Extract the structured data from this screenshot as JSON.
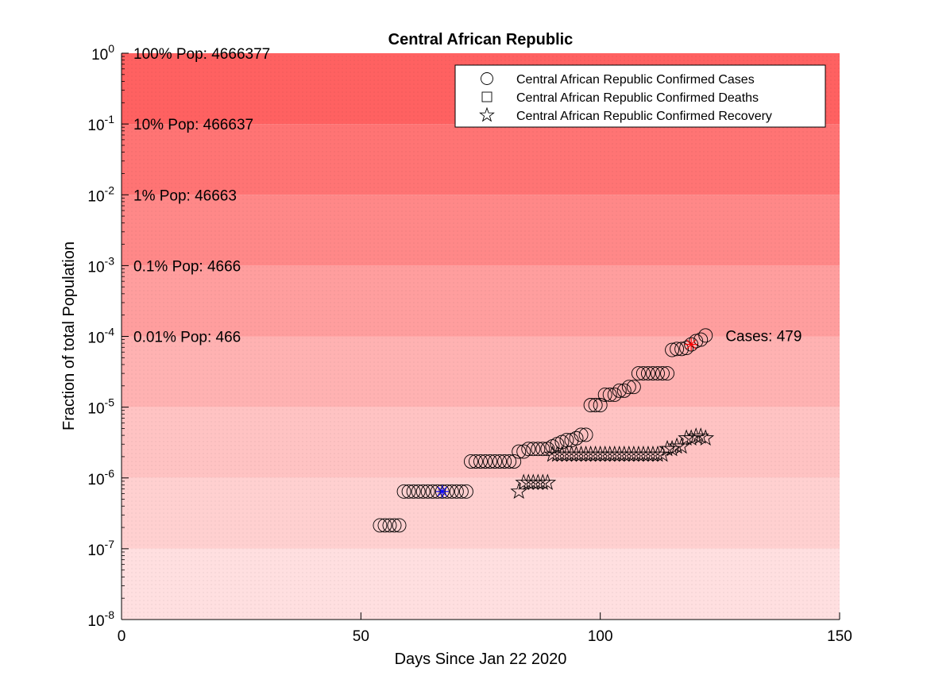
{
  "chart_data": {
    "type": "scatter",
    "title": "Central African Republic",
    "xlabel": "Days Since Jan 22 2020",
    "ylabel": "Fraction of total Population",
    "xlim": [
      0,
      150
    ],
    "ylim": [
      1e-08,
      1
    ],
    "yscale": "log",
    "x_ticks": [
      "0",
      "50",
      "100",
      "150"
    ],
    "y_ticks": [
      {
        "base": "10",
        "exp": "0"
      },
      {
        "base": "10",
        "exp": "-1"
      },
      {
        "base": "10",
        "exp": "-2"
      },
      {
        "base": "10",
        "exp": "-3"
      },
      {
        "base": "10",
        "exp": "-4"
      },
      {
        "base": "10",
        "exp": "-5"
      },
      {
        "base": "10",
        "exp": "-6"
      },
      {
        "base": "10",
        "exp": "-7"
      },
      {
        "base": "10",
        "exp": "-8"
      }
    ],
    "population_bands": [
      {
        "label": "100% Pop: 4666377",
        "upper": 1,
        "lower": 0.1,
        "color": "#ff6161"
      },
      {
        "label": "10% Pop: 466637",
        "upper": 0.1,
        "lower": 0.01,
        "color": "#ff7474"
      },
      {
        "label": "1% Pop: 46663",
        "upper": 0.01,
        "lower": 0.001,
        "color": "#ff8888"
      },
      {
        "label": "0.1% Pop: 4666",
        "upper": 0.001,
        "lower": 0.0001,
        "color": "#ff9e9e"
      },
      {
        "label": "0.01% Pop: 466",
        "upper": 0.0001,
        "lower": 1e-05,
        "color": "#ffb2b2"
      },
      {
        "label": "",
        "upper": 1e-05,
        "lower": 1e-06,
        "color": "#ffc3c3"
      },
      {
        "label": "",
        "upper": 1e-06,
        "lower": 1e-07,
        "color": "#ffd0d0"
      },
      {
        "label": "",
        "upper": 1e-07,
        "lower": 1e-08,
        "color": "#ffdfe0"
      }
    ],
    "series": [
      {
        "name": "Central African Republic Confirmed Cases",
        "marker": "circle",
        "points": [
          [
            54,
            2.14e-07
          ],
          [
            55,
            2.14e-07
          ],
          [
            56,
            2.14e-07
          ],
          [
            57,
            2.14e-07
          ],
          [
            58,
            2.14e-07
          ],
          [
            59,
            6.43e-07
          ],
          [
            60,
            6.43e-07
          ],
          [
            61,
            6.43e-07
          ],
          [
            62,
            6.43e-07
          ],
          [
            63,
            6.43e-07
          ],
          [
            64,
            6.43e-07
          ],
          [
            65,
            6.43e-07
          ],
          [
            66,
            6.43e-07
          ],
          [
            67,
            6.43e-07
          ],
          [
            68,
            6.43e-07
          ],
          [
            69,
            6.43e-07
          ],
          [
            70,
            6.43e-07
          ],
          [
            71,
            6.43e-07
          ],
          [
            72,
            6.43e-07
          ],
          [
            73,
            1.71e-06
          ],
          [
            74,
            1.71e-06
          ],
          [
            75,
            1.71e-06
          ],
          [
            76,
            1.71e-06
          ],
          [
            77,
            1.71e-06
          ],
          [
            78,
            1.71e-06
          ],
          [
            79,
            1.71e-06
          ],
          [
            80,
            1.71e-06
          ],
          [
            81,
            1.71e-06
          ],
          [
            82,
            1.71e-06
          ],
          [
            83,
            2.36e-06
          ],
          [
            84,
            2.36e-06
          ],
          [
            85,
            2.57e-06
          ],
          [
            86,
            2.57e-06
          ],
          [
            87,
            2.57e-06
          ],
          [
            88,
            2.57e-06
          ],
          [
            89,
            2.57e-06
          ],
          [
            90,
            2.79e-06
          ],
          [
            91,
            3e-06
          ],
          [
            92,
            3.21e-06
          ],
          [
            93,
            3.43e-06
          ],
          [
            94,
            3.43e-06
          ],
          [
            95,
            3.64e-06
          ],
          [
            96,
            4.07e-06
          ],
          [
            97,
            4.07e-06
          ],
          [
            98,
            1.07e-05
          ],
          [
            99,
            1.07e-05
          ],
          [
            100,
            1.07e-05
          ],
          [
            101,
            1.5e-05
          ],
          [
            102,
            1.5e-05
          ],
          [
            103,
            1.5e-05
          ],
          [
            104,
            1.71e-05
          ],
          [
            105,
            1.71e-05
          ],
          [
            106,
            1.93e-05
          ],
          [
            107,
            1.93e-05
          ],
          [
            108,
            3e-05
          ],
          [
            109,
            3e-05
          ],
          [
            110,
            3e-05
          ],
          [
            111,
            3e-05
          ],
          [
            112,
            3e-05
          ],
          [
            113,
            3e-05
          ],
          [
            114,
            3e-05
          ],
          [
            115,
            6.43e-05
          ],
          [
            116,
            6.64e-05
          ],
          [
            117,
            6.64e-05
          ],
          [
            118,
            6.86e-05
          ],
          [
            119,
            7.71e-05
          ],
          [
            120,
            8.57e-05
          ],
          [
            121,
            9e-05
          ],
          [
            122,
            0.000103
          ]
        ]
      },
      {
        "name": "Central African Republic Confirmed Deaths",
        "marker": "square",
        "points": []
      },
      {
        "name": "Central African Republic Confirmed Recovery",
        "marker": "star",
        "points": [
          [
            83,
            6.43e-07
          ],
          [
            84,
            8.57e-07
          ],
          [
            85,
            8.57e-07
          ],
          [
            86,
            8.57e-07
          ],
          [
            87,
            8.57e-07
          ],
          [
            88,
            8.57e-07
          ],
          [
            89,
            8.57e-07
          ],
          [
            90,
            2.14e-06
          ],
          [
            91,
            2.14e-06
          ],
          [
            92,
            2.14e-06
          ],
          [
            93,
            2.14e-06
          ],
          [
            94,
            2.14e-06
          ],
          [
            95,
            2.14e-06
          ],
          [
            96,
            2.14e-06
          ],
          [
            97,
            2.14e-06
          ],
          [
            98,
            2.14e-06
          ],
          [
            99,
            2.14e-06
          ],
          [
            100,
            2.14e-06
          ],
          [
            101,
            2.14e-06
          ],
          [
            102,
            2.14e-06
          ],
          [
            103,
            2.14e-06
          ],
          [
            104,
            2.14e-06
          ],
          [
            105,
            2.14e-06
          ],
          [
            106,
            2.14e-06
          ],
          [
            107,
            2.14e-06
          ],
          [
            108,
            2.14e-06
          ],
          [
            109,
            2.14e-06
          ],
          [
            110,
            2.14e-06
          ],
          [
            111,
            2.14e-06
          ],
          [
            112,
            2.14e-06
          ],
          [
            113,
            2.14e-06
          ],
          [
            114,
            2.57e-06
          ],
          [
            115,
            2.57e-06
          ],
          [
            116,
            2.79e-06
          ],
          [
            117,
            2.79e-06
          ],
          [
            118,
            3.64e-06
          ],
          [
            119,
            3.64e-06
          ],
          [
            120,
            3.86e-06
          ],
          [
            121,
            3.86e-06
          ],
          [
            122,
            3.64e-06
          ]
        ]
      }
    ],
    "highlight_markers": [
      {
        "x": 67,
        "y": 6.43e-07,
        "color": "#0000ff"
      },
      {
        "x": 119,
        "y": 7.71e-05,
        "color": "#ff0000"
      }
    ],
    "annotation": {
      "text": "Cases: 479",
      "x": 125,
      "y": 0.000103
    },
    "legend": {
      "position": "top-right"
    }
  }
}
